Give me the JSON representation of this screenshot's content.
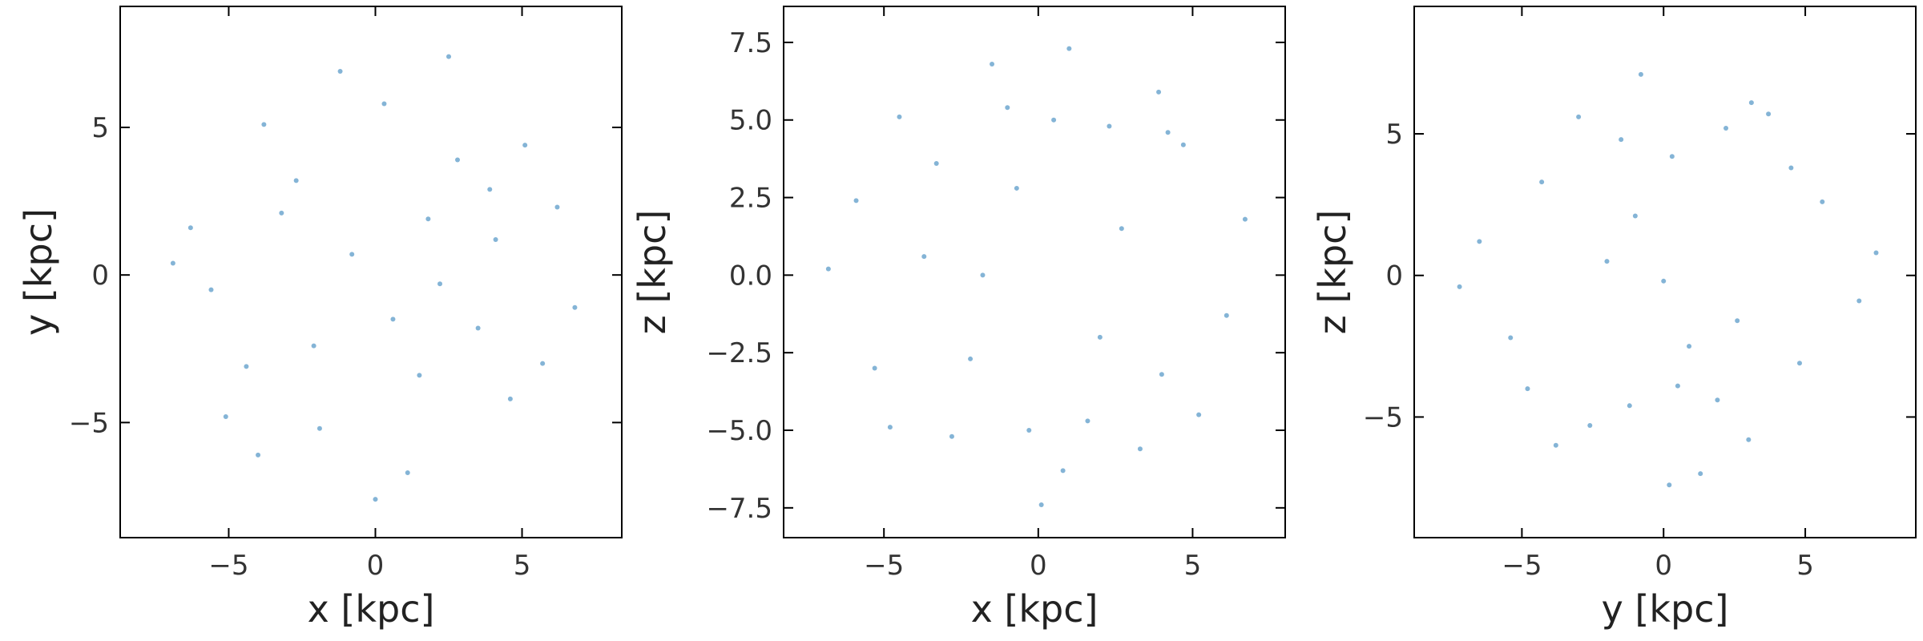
{
  "chart_data": [
    {
      "type": "scatter",
      "xlabel": "x [kpc]",
      "ylabel": "y [kpc]",
      "color": "#1f77b4",
      "xlim": [
        -8.7,
        8.4
      ],
      "ylim": [
        -8.9,
        9.1
      ],
      "xticks": [
        {
          "value": -5,
          "label": "−5"
        },
        0,
        5
      ],
      "yticks": [
        {
          "value": -5,
          "label": "−5"
        },
        0,
        5
      ],
      "x": [
        -3.2,
        1.5,
        4.1,
        -5.6,
        0.3,
        2.8,
        -1.9,
        6.2,
        -4.4,
        3.5,
        -0.8,
        5.1,
        -6.3,
        1.1,
        -2.7,
        4.6,
        -3.8,
        0.6,
        2.2,
        -5.1,
        3.9,
        -1.2,
        6.8,
        -6.9,
        0.0,
        2.5,
        -4.0,
        5.7,
        -2.1,
        1.8
      ],
      "y": [
        2.1,
        -3.4,
        1.2,
        -0.5,
        5.8,
        3.9,
        -5.2,
        2.3,
        -3.1,
        -1.8,
        0.7,
        4.4,
        1.6,
        -6.7,
        3.2,
        -4.2,
        5.1,
        -1.5,
        -0.3,
        -4.8,
        2.9,
        6.9,
        -1.1,
        0.4,
        -7.6,
        7.4,
        -6.1,
        -3.0,
        -2.4,
        1.9
      ]
    },
    {
      "type": "scatter",
      "xlabel": "x [kpc]",
      "ylabel": "z [kpc]",
      "color": "#1f77b4",
      "xlim": [
        -8.25,
        8.0
      ],
      "ylim": [
        -8.46,
        8.66
      ],
      "xticks": [
        {
          "value": -5,
          "label": "−5"
        },
        0,
        5
      ],
      "yticks": [
        {
          "value": -7.5,
          "label": "−7.5"
        },
        {
          "value": -5,
          "label": "−5.0"
        },
        {
          "value": -2.5,
          "label": "−2.5"
        },
        {
          "value": 0,
          "label": "0.0"
        },
        2.5,
        {
          "value": 5,
          "label": "5.0"
        },
        7.5
      ],
      "x": [
        -4.5,
        -1.0,
        0.5,
        2.3,
        4.2,
        -2.8,
        3.3,
        -0.3,
        1.6,
        -5.9,
        6.1,
        -3.7,
        -4.8,
        1.0,
        4.0,
        -1.5,
        2.7,
        -6.8,
        6.7,
        0.1,
        -2.2,
        3.9,
        -3.3,
        0.8,
        5.2,
        -5.3,
        -0.7,
        2.0,
        -1.8,
        4.7
      ],
      "y": [
        5.1,
        5.4,
        5.0,
        4.8,
        4.6,
        -5.2,
        -5.6,
        -5.0,
        -4.7,
        2.4,
        -1.3,
        0.6,
        -4.9,
        7.3,
        -3.2,
        6.8,
        1.5,
        0.2,
        1.8,
        -7.4,
        -2.7,
        5.9,
        3.6,
        -6.3,
        -4.5,
        -3.0,
        2.8,
        -2.0,
        0.0,
        4.2
      ]
    },
    {
      "type": "scatter",
      "xlabel": "y [kpc]",
      "ylabel": "z [kpc]",
      "color": "#1f77b4",
      "xlim": [
        -8.8,
        8.9
      ],
      "ylim": [
        -9.26,
        9.5
      ],
      "xticks": [
        {
          "value": -5,
          "label": "−5"
        },
        0,
        5
      ],
      "yticks": [
        {
          "value": -5,
          "label": "−5"
        },
        0,
        5
      ],
      "x": [
        -3.0,
        -1.5,
        0.3,
        2.2,
        3.1,
        -2.6,
        -1.2,
        0.5,
        1.9,
        3.0,
        -6.5,
        6.9,
        -4.3,
        4.8,
        -0.8,
        1.3,
        -5.4,
        5.6,
        -2.0,
        2.6,
        0.0,
        -3.8,
        3.7,
        -7.2,
        7.5,
        -1.0,
        0.9,
        -4.8,
        4.5,
        0.2
      ],
      "y": [
        5.6,
        4.8,
        4.2,
        5.2,
        6.1,
        -5.3,
        -4.6,
        -3.9,
        -4.4,
        -5.8,
        1.2,
        -0.9,
        3.3,
        -3.1,
        7.1,
        -7.0,
        -2.2,
        2.6,
        0.5,
        -1.6,
        -0.2,
        -6.0,
        5.7,
        -0.4,
        0.8,
        2.1,
        -2.5,
        -4.0,
        3.8,
        -7.4
      ]
    }
  ]
}
